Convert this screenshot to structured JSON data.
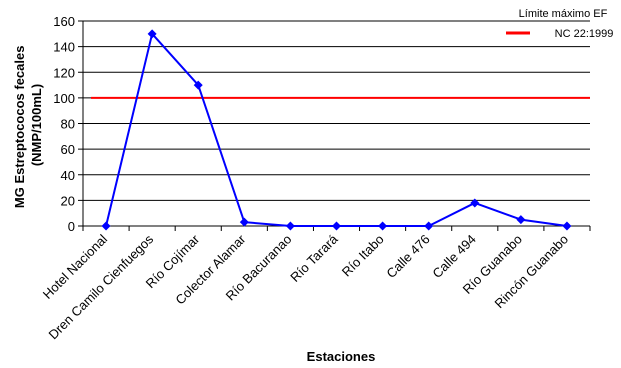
{
  "chart_data": {
    "type": "line",
    "title": "",
    "xlabel": "Estaciones",
    "ylabel_lines": [
      "MG Estreptococos fecales",
      "(NMP/100mL)"
    ],
    "categories": [
      "Hotel Nacional",
      "Dren Camilo Cienfuegos",
      "Río Cojímar",
      "Colector Alamar",
      "Río Bacuranao",
      "Río Tarará",
      "Río Itabo",
      "Calle 476",
      "Calle 494",
      "Río Guanabo",
      "Rincón Guanabo"
    ],
    "series": [
      {
        "values": [
          0,
          150,
          110,
          3,
          0,
          0,
          0,
          0,
          18,
          5,
          0
        ],
        "color": "#0000ff",
        "marker": "diamond"
      }
    ],
    "reference_line": {
      "value": 100,
      "label_lines": [
        "Límite máximo EF",
        "NC 22:1999"
      ],
      "color": "#ff0000"
    },
    "ylim": [
      0,
      160
    ],
    "yticks": [
      0,
      20,
      40,
      60,
      80,
      100,
      120,
      140,
      160
    ],
    "grid": true,
    "legend_position": "top-right"
  }
}
